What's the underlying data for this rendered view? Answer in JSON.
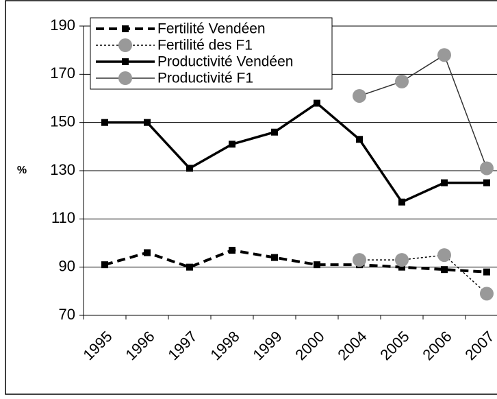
{
  "chart_data": {
    "type": "line",
    "y_label": "%",
    "categories": [
      "1995",
      "1996",
      "1997",
      "1998",
      "1999",
      "2000",
      "2004",
      "2005",
      "2006",
      "2007"
    ],
    "series": [
      {
        "name": "Fertilité Vendéen",
        "color": "#000000",
        "line_style": "dashed",
        "marker": "square",
        "values": [
          91,
          96,
          90,
          97,
          94,
          91,
          91,
          90,
          89,
          88
        ]
      },
      {
        "name": "Fertilité des F1",
        "color": "#999999",
        "line_style": "dotted",
        "marker": "circle",
        "values": [
          null,
          null,
          null,
          null,
          null,
          null,
          93,
          93,
          95,
          79
        ]
      },
      {
        "name": "Productivité Vendéen",
        "color": "#000000",
        "line_style": "solid",
        "marker": "square",
        "values": [
          150,
          150,
          131,
          141,
          146,
          158,
          143,
          117,
          125,
          125
        ]
      },
      {
        "name": "Productivité F1",
        "color": "#999999",
        "line_style": "thin",
        "marker": "circle",
        "values": [
          null,
          null,
          null,
          null,
          null,
          null,
          161,
          167,
          178,
          131
        ]
      }
    ],
    "ylim": [
      70,
      190
    ],
    "yticks": [
      70,
      90,
      110,
      130,
      150,
      170,
      190
    ],
    "grid": true,
    "legend": "upper left"
  }
}
